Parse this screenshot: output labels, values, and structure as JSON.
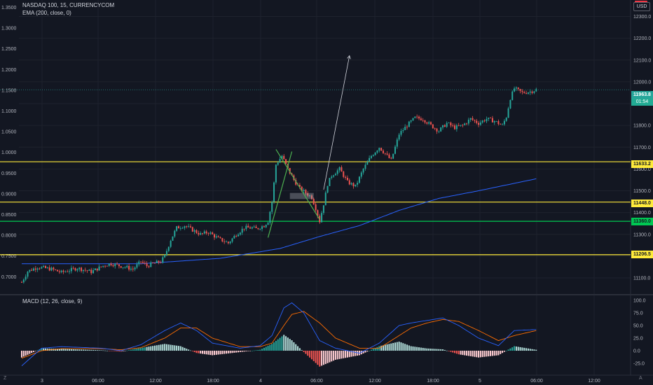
{
  "legend": {
    "symbol": "NASDAQ 100, 15, CURRENCYCOM",
    "ema": "EMA (200, close, 0)",
    "macd": "MACD (12, 26, close, 9)"
  },
  "currency_button": "USD",
  "price_tags": {
    "last": "11963.8",
    "countdown": "01:54",
    "level_1": "11633.2",
    "level_2": "11448.0",
    "level_3": "11360.0",
    "level_4": "11206.5"
  },
  "colors": {
    "background": "#131722",
    "grid": "#1e222d",
    "up": "#26a69a",
    "down": "#ef5350",
    "ema": "#2962ff",
    "yellow_level": "#ffeb3b",
    "green_level": "#00c853",
    "macd_line": "#2962ff",
    "signal_line": "#ff6d00"
  },
  "chart_data": {
    "type": "candlestick",
    "instrument": "NASDAQ 100, 15, CURRENCYCOM",
    "left_axis": {
      "ticks": [
        "1.3500",
        "1.3000",
        "1.2500",
        "1.2000",
        "1.1500",
        "1.1000",
        "1.0500",
        "1.0000",
        "0.9500",
        "0.9000",
        "0.8500",
        "0.8000",
        "0.7500",
        "0.7000"
      ]
    },
    "right_axis": {
      "ticks": [
        "12300.0",
        "12200.0",
        "12100.0",
        "12000.0",
        "11900.0",
        "11800.0",
        "11700.0",
        "11600.0",
        "11500.0",
        "11400.0",
        "11300.0",
        "11200.0",
        "11100.0"
      ],
      "ylim": [
        11040,
        12400
      ]
    },
    "x_axis": {
      "ticks": [
        "3",
        "06:00",
        "12:00",
        "18:00",
        "4",
        "06:00",
        "12:00",
        "18:00",
        "5",
        "06:00",
        "12:00"
      ]
    },
    "horizontal_levels": [
      {
        "value": 11633.2,
        "color": "yellow"
      },
      {
        "value": 11448.0,
        "color": "yellow"
      },
      {
        "value": 11360.0,
        "color": "green"
      },
      {
        "value": 11206.5,
        "color": "yellow"
      }
    ],
    "last_price": 11963.8,
    "price_path": [
      [
        0,
        11080
      ],
      [
        3,
        11130
      ],
      [
        8,
        11150
      ],
      [
        15,
        11140
      ],
      [
        20,
        11125
      ],
      [
        28,
        11145
      ],
      [
        35,
        11128
      ],
      [
        42,
        11160
      ],
      [
        45,
        11165
      ],
      [
        52,
        11150
      ],
      [
        56,
        11140
      ],
      [
        60,
        11175
      ],
      [
        63,
        11155
      ],
      [
        66,
        11165
      ],
      [
        70,
        11175
      ],
      [
        72,
        11200
      ],
      [
        75,
        11275
      ],
      [
        78,
        11330
      ],
      [
        82,
        11340
      ],
      [
        86,
        11320
      ],
      [
        90,
        11300
      ],
      [
        94,
        11310
      ],
      [
        99,
        11280
      ],
      [
        104,
        11260
      ],
      [
        108,
        11300
      ],
      [
        112,
        11330
      ],
      [
        116,
        11330
      ],
      [
        118,
        11325
      ],
      [
        122,
        11340
      ],
      [
        124,
        11360
      ],
      [
        126,
        11450
      ],
      [
        128,
        11620
      ],
      [
        131,
        11660
      ],
      [
        134,
        11600
      ],
      [
        137,
        11550
      ],
      [
        140,
        11510
      ],
      [
        143,
        11490
      ],
      [
        146,
        11470
      ],
      [
        148,
        11420
      ],
      [
        150,
        11360
      ],
      [
        152,
        11440
      ],
      [
        154,
        11530
      ],
      [
        156,
        11570
      ],
      [
        160,
        11600
      ],
      [
        164,
        11540
      ],
      [
        168,
        11520
      ],
      [
        172,
        11600
      ],
      [
        176,
        11660
      ],
      [
        180,
        11700
      ],
      [
        184,
        11660
      ],
      [
        186,
        11640
      ],
      [
        190,
        11760
      ],
      [
        194,
        11800
      ],
      [
        198,
        11835
      ],
      [
        202,
        11830
      ],
      [
        206,
        11800
      ],
      [
        210,
        11775
      ],
      [
        214,
        11810
      ],
      [
        218,
        11790
      ],
      [
        222,
        11800
      ],
      [
        226,
        11830
      ],
      [
        230,
        11810
      ],
      [
        234,
        11830
      ],
      [
        238,
        11820
      ],
      [
        242,
        11800
      ],
      [
        244,
        11840
      ],
      [
        246,
        11925
      ],
      [
        248,
        11970
      ],
      [
        252,
        11950
      ],
      [
        256,
        11955
      ],
      [
        259,
        11964
      ]
    ],
    "ema_200": [
      [
        0,
        11165
      ],
      [
        60,
        11165
      ],
      [
        100,
        11190
      ],
      [
        130,
        11235
      ],
      [
        150,
        11290
      ],
      [
        170,
        11340
      ],
      [
        190,
        11410
      ],
      [
        210,
        11465
      ],
      [
        230,
        11500
      ],
      [
        259,
        11555
      ]
    ],
    "pattern": {
      "upper_line": [
        [
          128,
          11690
        ],
        [
          150,
          11368
        ]
      ],
      "lower_line": [
        [
          124,
          11285
        ],
        [
          136,
          11680
        ]
      ],
      "arrow": [
        [
          152,
          11505
        ],
        [
          165,
          12120
        ]
      ],
      "box": [
        [
          135,
          11490
        ],
        [
          147,
          11462
        ]
      ]
    },
    "macd": {
      "axis_ticks": [
        "100.0",
        "75.0",
        "50.0",
        "25.0",
        "0.0",
        "-25.0"
      ],
      "ylim": [
        -45,
        110
      ],
      "macd_line": [
        [
          0,
          -30
        ],
        [
          10,
          5
        ],
        [
          20,
          8
        ],
        [
          40,
          5
        ],
        [
          50,
          0
        ],
        [
          60,
          12
        ],
        [
          72,
          40
        ],
        [
          80,
          55
        ],
        [
          88,
          40
        ],
        [
          96,
          15
        ],
        [
          110,
          5
        ],
        [
          120,
          10
        ],
        [
          126,
          30
        ],
        [
          132,
          85
        ],
        [
          136,
          95
        ],
        [
          142,
          75
        ],
        [
          150,
          20
        ],
        [
          158,
          5
        ],
        [
          170,
          -5
        ],
        [
          180,
          15
        ],
        [
          190,
          50
        ],
        [
          196,
          55
        ],
        [
          204,
          60
        ],
        [
          212,
          65
        ],
        [
          220,
          50
        ],
        [
          230,
          25
        ],
        [
          240,
          10
        ],
        [
          248,
          40
        ],
        [
          259,
          42
        ]
      ],
      "signal_line": [
        [
          0,
          -15
        ],
        [
          10,
          0
        ],
        [
          20,
          4
        ],
        [
          40,
          4
        ],
        [
          50,
          2
        ],
        [
          60,
          6
        ],
        [
          72,
          25
        ],
        [
          80,
          45
        ],
        [
          88,
          45
        ],
        [
          96,
          25
        ],
        [
          110,
          8
        ],
        [
          120,
          8
        ],
        [
          126,
          15
        ],
        [
          132,
          50
        ],
        [
          136,
          72
        ],
        [
          142,
          78
        ],
        [
          150,
          55
        ],
        [
          158,
          25
        ],
        [
          170,
          5
        ],
        [
          180,
          5
        ],
        [
          190,
          30
        ],
        [
          196,
          45
        ],
        [
          204,
          55
        ],
        [
          212,
          62
        ],
        [
          220,
          58
        ],
        [
          230,
          40
        ],
        [
          240,
          20
        ],
        [
          248,
          30
        ],
        [
          259,
          40
        ]
      ]
    }
  }
}
